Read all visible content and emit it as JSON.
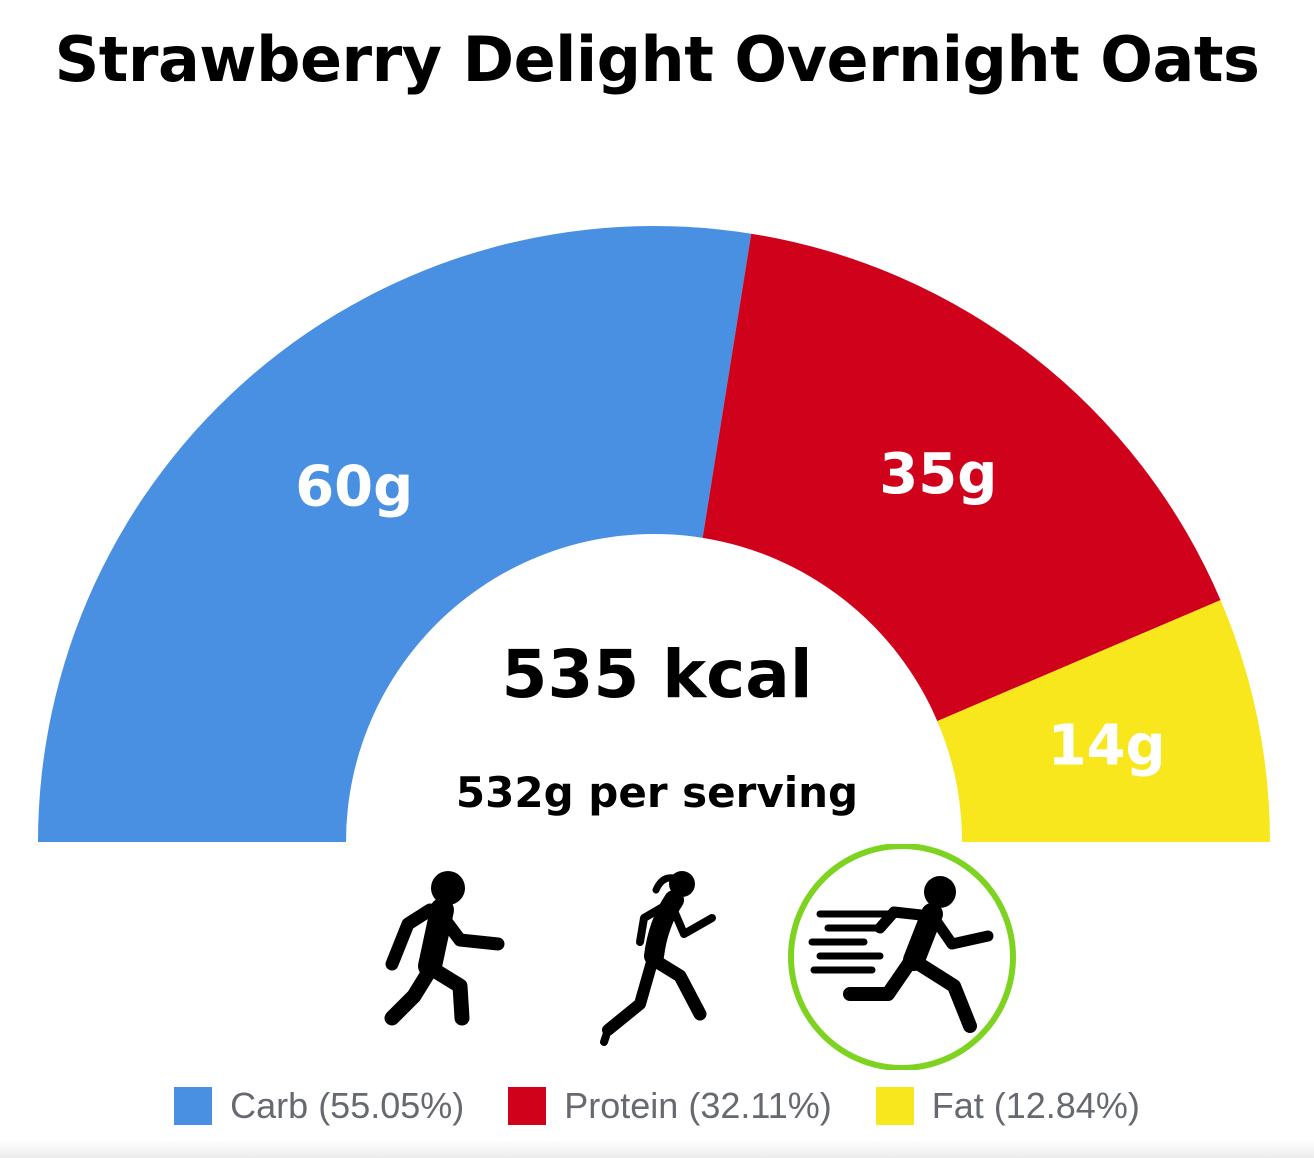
{
  "chart_data": {
    "type": "pie",
    "title": "Strawberry Delight Overnight Oats",
    "slices": [
      {
        "name": "Carb",
        "value": 60,
        "label": "60g",
        "percent": 55.05,
        "legend": "Carb (55.05%)",
        "color": "#4a90e2"
      },
      {
        "name": "Protein",
        "value": 35,
        "label": "35g",
        "percent": 32.11,
        "legend": "Protein (32.11%)",
        "color": "#d0021b"
      },
      {
        "name": "Fat",
        "value": 14,
        "label": "14g",
        "percent": 12.84,
        "legend": "Fat (12.84%)",
        "color": "#f8e71c"
      }
    ],
    "center_text": "535 kcal",
    "sub_text": "532g per serving",
    "legend_position": "bottom"
  },
  "activities": [
    {
      "icon": "walking-person-icon",
      "highlighted": false
    },
    {
      "icon": "running-woman-icon",
      "highlighted": false
    },
    {
      "icon": "sprinting-person-icon",
      "highlighted": true,
      "ring_color": "#7ed321"
    }
  ]
}
